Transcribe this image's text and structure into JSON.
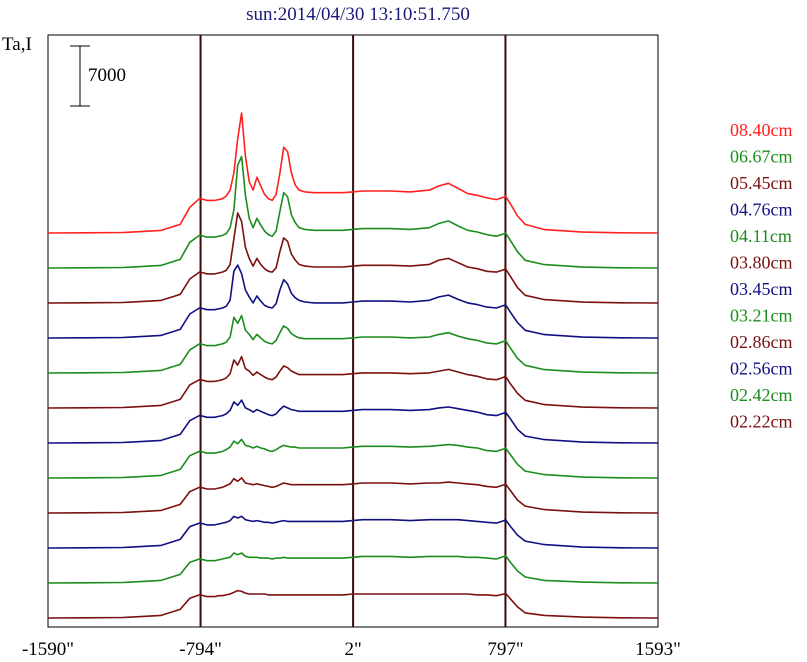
{
  "chart_data": {
    "type": "line",
    "title": "sun:2014/04/30 13:10:51.750",
    "ylabel": "Ta,I",
    "scale_bar_label": "7000",
    "x_ticks": [
      "-1590\"",
      "-794\"",
      "2\"",
      "797\"",
      "1593\""
    ],
    "x_tick_values": [
      -1590,
      -794,
      2,
      797,
      1593
    ],
    "xlim": [
      -1590,
      1593
    ],
    "vertical_lines": [
      -794,
      2,
      797
    ],
    "x": [
      -1590,
      -1400,
      -1200,
      -1000,
      -900,
      -850,
      -800,
      -794,
      -760,
      -720,
      -700,
      -680,
      -660,
      -640,
      -620,
      -600,
      -580,
      -560,
      -540,
      -520,
      -500,
      -480,
      -460,
      -440,
      -420,
      -400,
      -380,
      -360,
      -340,
      -320,
      -300,
      -280,
      -250,
      -200,
      -150,
      -100,
      -50,
      0,
      50,
      100,
      200,
      300,
      400,
      450,
      500,
      550,
      600,
      650,
      700,
      750,
      790,
      797,
      820,
      860,
      900,
      1000,
      1200,
      1400,
      1593
    ],
    "legend_placement": "right",
    "series": [
      {
        "name": "08.40cm",
        "color": "#ff2020",
        "offset": 0,
        "values": [
          0,
          20,
          60,
          300,
          1000,
          3000,
          4000,
          4000,
          3800,
          3800,
          3900,
          4000,
          4300,
          5000,
          7000,
          11000,
          14000,
          9000,
          6000,
          5000,
          6500,
          5500,
          4500,
          4000,
          3800,
          4500,
          7000,
          10000,
          9500,
          7000,
          5600,
          5000,
          4800,
          4700,
          4700,
          4700,
          4700,
          4800,
          4900,
          4900,
          4900,
          4800,
          5000,
          5500,
          5800,
          5200,
          4600,
          4400,
          4100,
          3900,
          4200,
          4300,
          3500,
          2000,
          1000,
          400,
          100,
          20,
          0
        ]
      },
      {
        "name": "06.67cm",
        "color": "#1c8c1c",
        "offset": 1,
        "values": [
          0,
          20,
          60,
          300,
          1000,
          3000,
          3800,
          3800,
          3600,
          3600,
          3700,
          3800,
          4000,
          4700,
          6800,
          12000,
          13000,
          8500,
          5800,
          4700,
          5800,
          5000,
          4300,
          3900,
          3700,
          4300,
          6600,
          8800,
          8300,
          6200,
          5300,
          4700,
          4500,
          4400,
          4400,
          4400,
          4400,
          4500,
          4600,
          4600,
          4600,
          4500,
          4700,
          5200,
          5500,
          4900,
          4400,
          4200,
          3900,
          3700,
          4000,
          4100,
          3300,
          1900,
          900,
          400,
          100,
          20,
          0
        ]
      },
      {
        "name": "05.45cm",
        "color": "#7a1010",
        "offset": 2,
        "values": [
          0,
          20,
          60,
          300,
          1000,
          2800,
          3600,
          3600,
          3400,
          3400,
          3500,
          3600,
          3800,
          4500,
          7500,
          10500,
          9500,
          6500,
          5200,
          4300,
          5200,
          4500,
          4000,
          3700,
          3600,
          4100,
          6000,
          7600,
          7200,
          5700,
          5000,
          4500,
          4300,
          4200,
          4200,
          4200,
          4200,
          4300,
          4400,
          4400,
          4400,
          4300,
          4500,
          5000,
          5200,
          4700,
          4200,
          4000,
          3700,
          3600,
          3900,
          4000,
          3200,
          1800,
          900,
          400,
          100,
          20,
          0
        ]
      },
      {
        "name": "04.76cm",
        "color": "#101080",
        "offset": 3,
        "values": [
          0,
          20,
          60,
          300,
          1000,
          2800,
          3500,
          3500,
          3300,
          3300,
          3400,
          3500,
          3700,
          4400,
          7800,
          8500,
          7500,
          5600,
          4800,
          4100,
          4900,
          4300,
          3800,
          3600,
          3500,
          4000,
          5600,
          6800,
          6300,
          5200,
          4700,
          4400,
          4200,
          4100,
          4100,
          4100,
          4100,
          4200,
          4300,
          4300,
          4300,
          4200,
          4400,
          4800,
          5000,
          4500,
          4100,
          3900,
          3600,
          3500,
          3800,
          3900,
          3100,
          1800,
          900,
          400,
          100,
          20,
          0
        ]
      },
      {
        "name": "04.11cm",
        "color": "#1c8c1c",
        "offset": 4,
        "values": [
          0,
          20,
          60,
          300,
          1000,
          2700,
          3400,
          3400,
          3200,
          3200,
          3300,
          3400,
          3600,
          4200,
          6500,
          5800,
          6700,
          5000,
          4500,
          3900,
          4500,
          4100,
          3700,
          3500,
          3400,
          3800,
          4700,
          5500,
          5200,
          4600,
          4300,
          4100,
          4000,
          4000,
          4000,
          4000,
          4000,
          4100,
          4200,
          4200,
          4200,
          4100,
          4200,
          4500,
          4700,
          4300,
          4000,
          3800,
          3500,
          3400,
          3700,
          3800,
          3000,
          1700,
          900,
          400,
          100,
          20,
          0
        ]
      },
      {
        "name": "03.80cm",
        "color": "#7a1010",
        "offset": 5,
        "values": [
          0,
          20,
          60,
          300,
          1000,
          2700,
          3300,
          3300,
          3100,
          3100,
          3200,
          3300,
          3500,
          4000,
          5600,
          5000,
          6000,
          4600,
          4300,
          3800,
          4200,
          3900,
          3600,
          3400,
          3300,
          3600,
          4300,
          4900,
          4700,
          4300,
          4100,
          3900,
          3900,
          3900,
          3900,
          3900,
          3900,
          4000,
          4100,
          4100,
          4100,
          4000,
          4100,
          4300,
          4500,
          4200,
          3900,
          3700,
          3400,
          3300,
          3600,
          3700,
          2900,
          1700,
          900,
          400,
          100,
          20,
          0
        ]
      },
      {
        "name": "03.45cm",
        "color": "#101080",
        "offset": 6,
        "values": [
          0,
          20,
          60,
          300,
          1000,
          2600,
          3200,
          3200,
          3000,
          3000,
          3100,
          3200,
          3400,
          3800,
          4800,
          4400,
          5000,
          4100,
          3900,
          3600,
          3900,
          3700,
          3500,
          3300,
          3200,
          3400,
          3900,
          4300,
          4100,
          3900,
          3800,
          3700,
          3700,
          3700,
          3700,
          3700,
          3700,
          3800,
          3900,
          3900,
          3900,
          3800,
          3900,
          4100,
          4200,
          4000,
          3800,
          3600,
          3300,
          3200,
          3500,
          3600,
          2900,
          1600,
          800,
          400,
          100,
          20,
          0
        ]
      },
      {
        "name": "03.21cm",
        "color": "#1c8c1c",
        "offset": 7,
        "values": [
          0,
          20,
          60,
          300,
          1000,
          2600,
          3100,
          3100,
          2900,
          2900,
          3000,
          3100,
          3300,
          3600,
          4300,
          4000,
          4500,
          3800,
          3700,
          3500,
          3700,
          3500,
          3400,
          3200,
          3100,
          3300,
          3600,
          3800,
          3700,
          3600,
          3600,
          3500,
          3500,
          3500,
          3500,
          3500,
          3500,
          3600,
          3700,
          3700,
          3700,
          3600,
          3700,
          3800,
          3900,
          3800,
          3600,
          3500,
          3200,
          3100,
          3400,
          3500,
          2800,
          1600,
          800,
          400,
          100,
          20,
          0
        ]
      },
      {
        "name": "02.86cm",
        "color": "#7a1010",
        "offset": 8,
        "values": [
          0,
          20,
          60,
          300,
          1000,
          2500,
          3000,
          3000,
          2800,
          2800,
          2900,
          3000,
          3200,
          3400,
          4000,
          3700,
          4100,
          3500,
          3400,
          3300,
          3400,
          3300,
          3200,
          3100,
          3000,
          3100,
          3300,
          3500,
          3400,
          3300,
          3300,
          3300,
          3300,
          3300,
          3300,
          3300,
          3300,
          3400,
          3500,
          3500,
          3500,
          3400,
          3500,
          3500,
          3600,
          3500,
          3400,
          3300,
          3100,
          3000,
          3300,
          3400,
          2700,
          1500,
          800,
          400,
          100,
          20,
          0
        ]
      },
      {
        "name": "02.56cm",
        "color": "#101080",
        "offset": 9,
        "values": [
          0,
          20,
          60,
          300,
          1000,
          2500,
          2900,
          2900,
          2700,
          2700,
          2800,
          2900,
          3000,
          3200,
          3700,
          3500,
          3700,
          3300,
          3200,
          3100,
          3200,
          3100,
          3000,
          3000,
          2900,
          3000,
          3100,
          3200,
          3100,
          3100,
          3100,
          3100,
          3100,
          3100,
          3100,
          3100,
          3100,
          3200,
          3300,
          3300,
          3300,
          3200,
          3300,
          3300,
          3300,
          3300,
          3200,
          3100,
          3000,
          2900,
          3200,
          3300,
          2600,
          1500,
          800,
          400,
          100,
          20,
          0
        ]
      },
      {
        "name": "02.42cm",
        "color": "#1c8c1c",
        "offset": 10,
        "values": [
          0,
          20,
          60,
          300,
          1000,
          2400,
          2800,
          2800,
          2600,
          2600,
          2700,
          2800,
          2900,
          3000,
          3500,
          3300,
          3500,
          3100,
          3000,
          3000,
          3000,
          2900,
          2900,
          2900,
          2800,
          2900,
          2900,
          3000,
          2900,
          2900,
          2900,
          2900,
          2900,
          2900,
          2900,
          2900,
          2900,
          3000,
          3100,
          3100,
          3100,
          3000,
          3100,
          3100,
          3100,
          3100,
          3000,
          3000,
          2900,
          2800,
          3100,
          3200,
          2500,
          1400,
          700,
          300,
          100,
          20,
          0
        ]
      },
      {
        "name": "02.22cm",
        "color": "#7a1010",
        "offset": 11,
        "values": [
          0,
          20,
          60,
          300,
          1000,
          2300,
          2700,
          2700,
          2500,
          2500,
          2600,
          2600,
          2700,
          2800,
          3000,
          3200,
          3100,
          2900,
          2800,
          2800,
          2800,
          2800,
          2800,
          2700,
          2700,
          2700,
          2700,
          2700,
          2700,
          2700,
          2700,
          2700,
          2700,
          2700,
          2700,
          2700,
          2700,
          2800,
          2800,
          2800,
          2800,
          2800,
          2800,
          2800,
          2800,
          2800,
          2800,
          2700,
          2700,
          2600,
          2800,
          2900,
          2300,
          1300,
          600,
          300,
          100,
          20,
          0
        ]
      }
    ]
  }
}
